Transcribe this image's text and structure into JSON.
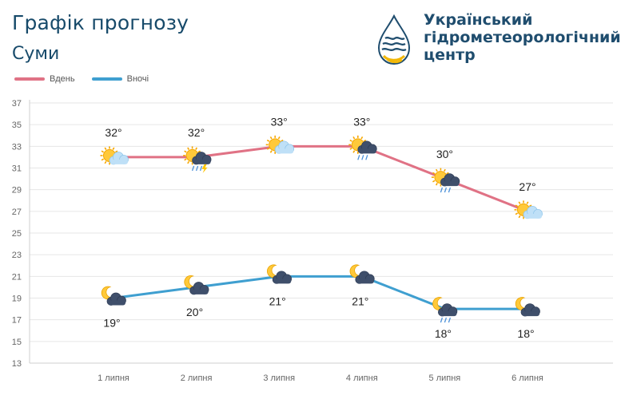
{
  "header": {
    "title": "Графік прогнозу",
    "city": "Суми",
    "org_name": "Український гідрометеорологічний центр",
    "logo_icon": "raindrop-logo-icon"
  },
  "colors": {
    "day": "#e07285",
    "night": "#3f9fd0",
    "title": "#174a6a",
    "grid": "#e6e6e6",
    "logo_blue": "#1f4d6e",
    "logo_yellow": "#f2b705"
  },
  "chart_data": {
    "type": "line",
    "categories": [
      "1 липня",
      "2 липня",
      "3 липня",
      "4 липня",
      "5 липня",
      "6 липня"
    ],
    "series": [
      {
        "name": "Вдень",
        "values": [
          32,
          32,
          33,
          33,
          30,
          27
        ],
        "labels": [
          "32°",
          "32°",
          "33°",
          "33°",
          "30°",
          "27°"
        ],
        "icons": [
          "sun-cloud-icon",
          "sun-cloud-rain-lightning-icon",
          "sun-cloud-icon",
          "sun-cloud-rain-icon",
          "sun-cloud-rain-icon",
          "sun-cloud-icon"
        ]
      },
      {
        "name": "Вночі",
        "values": [
          19,
          20,
          21,
          21,
          18,
          18
        ],
        "labels": [
          "19°",
          "20°",
          "21°",
          "21°",
          "18°",
          "18°"
        ],
        "icons": [
          "moon-cloud-icon",
          "moon-cloud-icon",
          "moon-cloud-icon",
          "moon-cloud-icon",
          "moon-cloud-rain-icon",
          "moon-cloud-icon"
        ]
      }
    ],
    "y_ticks": [
      "37",
      "35",
      "33",
      "31",
      "29",
      "27",
      "25",
      "23",
      "21",
      "19",
      "17",
      "15",
      "13"
    ],
    "ylim": [
      13,
      37
    ],
    "grid": true,
    "legend_position": "top-left"
  }
}
